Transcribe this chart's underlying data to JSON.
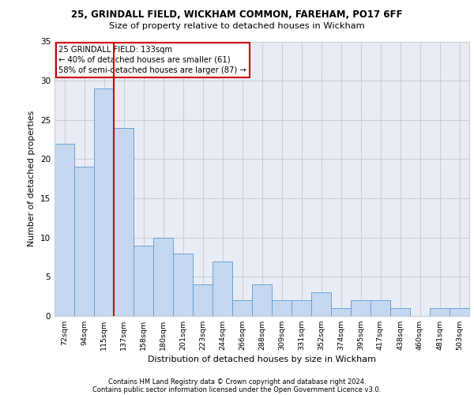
{
  "title1": "25, GRINDALL FIELD, WICKHAM COMMON, FAREHAM, PO17 6FF",
  "title2": "Size of property relative to detached houses in Wickham",
  "xlabel": "Distribution of detached houses by size in Wickham",
  "ylabel": "Number of detached properties",
  "categories": [
    "72sqm",
    "94sqm",
    "115sqm",
    "137sqm",
    "158sqm",
    "180sqm",
    "201sqm",
    "223sqm",
    "244sqm",
    "266sqm",
    "288sqm",
    "309sqm",
    "331sqm",
    "352sqm",
    "374sqm",
    "395sqm",
    "417sqm",
    "438sqm",
    "460sqm",
    "481sqm",
    "503sqm"
  ],
  "values": [
    22,
    19,
    29,
    24,
    9,
    10,
    8,
    4,
    7,
    2,
    4,
    2,
    2,
    3,
    1,
    2,
    2,
    1,
    0,
    1,
    1
  ],
  "bar_color": "#c5d8f0",
  "bar_edge_color": "#6a9fd8",
  "annotation_text1": "25 GRINDALL FIELD: 133sqm",
  "annotation_text2": "← 40% of detached houses are smaller (61)",
  "annotation_text3": "58% of semi-detached houses are larger (87) →",
  "annotation_box_color": "#ffffff",
  "annotation_box_edge_color": "#cc0000",
  "red_line_color": "#cc0000",
  "ylim": [
    0,
    35
  ],
  "yticks": [
    0,
    5,
    10,
    15,
    20,
    25,
    30,
    35
  ],
  "grid_color": "#c8d0dc",
  "bg_color": "#e8edf5",
  "footer1": "Contains HM Land Registry data © Crown copyright and database right 2024.",
  "footer2": "Contains public sector information licensed under the Open Government Licence v3.0."
}
